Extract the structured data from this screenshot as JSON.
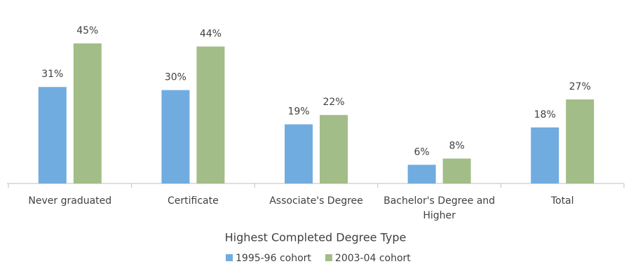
{
  "chart_data": {
    "type": "bar",
    "x_label": "Highest Completed Degree Type",
    "categories": [
      "Never graduated",
      "Certificate",
      "Associate's Degree",
      "Bachelor's Degree and Higher",
      "Total"
    ],
    "series": [
      {
        "name": "1995-96 cohort",
        "color": "#70ace0",
        "values": [
          31,
          30,
          19,
          6,
          18
        ],
        "value_labels": [
          "31%",
          "30%",
          "19%",
          "6%",
          "18%"
        ]
      },
      {
        "name": "2003-04 cohort",
        "color": "#a2bd87",
        "values": [
          45,
          44,
          22,
          8,
          27
        ],
        "value_labels": [
          "45%",
          "44%",
          "22%",
          "8%",
          "27%"
        ]
      }
    ],
    "legend": "bottom"
  }
}
